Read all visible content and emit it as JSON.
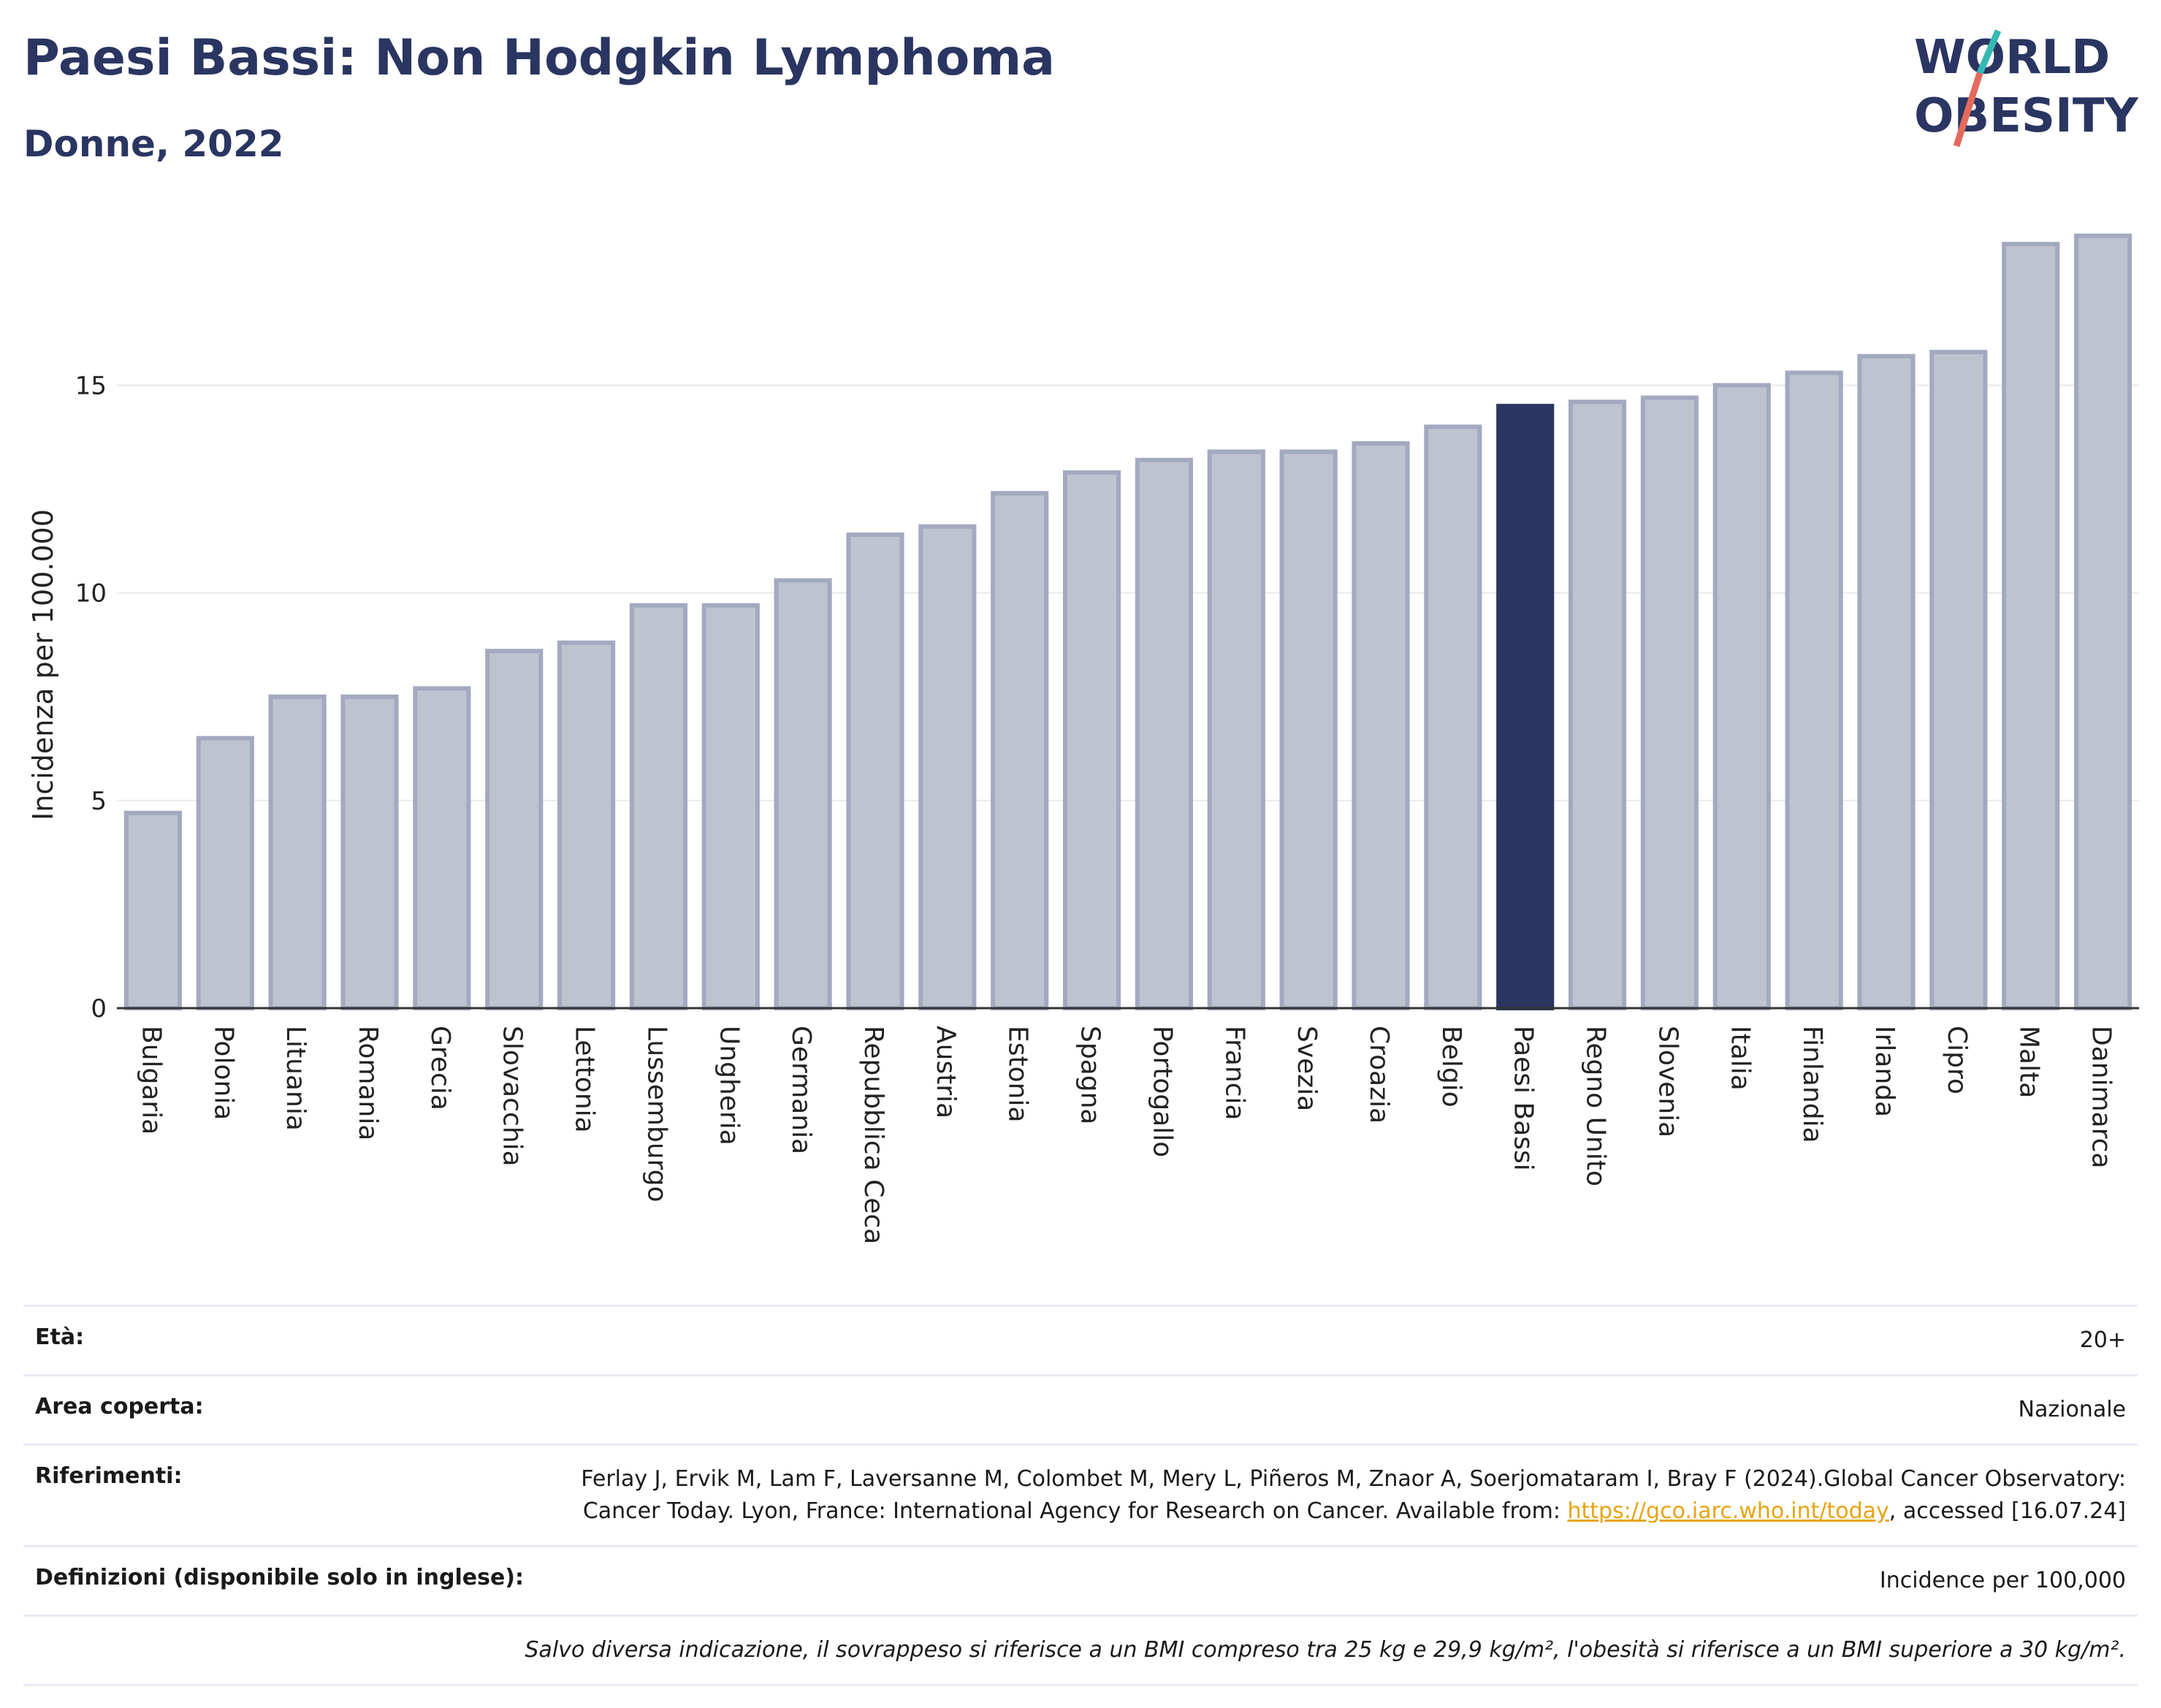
{
  "header": {
    "title": "Paesi Bassi: Non Hodgkin Lymphoma",
    "subtitle": "Donne, 2022"
  },
  "logo": {
    "line1": "WORLD",
    "line2": "OBESITY"
  },
  "colors": {
    "bar": "#bfc3d0",
    "bar_border": "#a3a9bf",
    "highlight": "#2a3561",
    "grid": "#e9e9ef"
  },
  "chart_data": {
    "type": "bar",
    "ylabel": "Incidenza per 100.000",
    "ylim": [
      0,
      19
    ],
    "yticks": [
      0,
      5,
      10,
      15
    ],
    "grid": true,
    "highlight": "Paesi Bassi",
    "categories": [
      "Bulgaria",
      "Polonia",
      "Lituania",
      "Romania",
      "Grecia",
      "Slovacchia",
      "Lettonia",
      "Lussemburgo",
      "Ungheria",
      "Germania",
      "Repubblica Ceca",
      "Austria",
      "Estonia",
      "Spagna",
      "Portogallo",
      "Francia",
      "Svezia",
      "Croazia",
      "Belgio",
      "Paesi Bassi",
      "Regno Unito",
      "Slovenia",
      "Italia",
      "Finlandia",
      "Irlanda",
      "Cipro",
      "Malta",
      "Danimarca"
    ],
    "values": [
      4.7,
      6.5,
      7.5,
      7.5,
      7.7,
      8.6,
      8.8,
      9.7,
      9.7,
      10.3,
      11.4,
      11.6,
      12.4,
      12.9,
      13.2,
      13.4,
      13.4,
      13.6,
      14.0,
      14.5,
      14.6,
      14.7,
      15.0,
      15.3,
      15.7,
      15.8,
      18.4,
      18.6
    ]
  },
  "info": {
    "age_label": "Età:",
    "age_value": "20+",
    "area_label": "Area coperta:",
    "area_value": "Nazionale",
    "refs_label": "Riferimenti:",
    "refs_text_1": "Ferlay J, Ervik M, Lam F, Laversanne M, Colombet M, Mery L, Piñeros M, Znaor A, Soerjomataram I, Bray F (2024).Global Cancer Observatory: Cancer Today. Lyon, France: International Agency for Research on Cancer. Available from: ",
    "refs_link": "https://gco.iarc.who.int/today",
    "refs_text_2": ", accessed [16.07.24]",
    "defs_label": "Definizioni (disponibile solo in inglese):",
    "defs_value": "Incidence per 100,000",
    "note": "Salvo diversa indicazione, il sovrappeso si riferisce a un BMI compreso tra 25 kg e 29,9 kg/m², l'obesità si riferisce a un BMI superiore a 30 kg/m²."
  }
}
